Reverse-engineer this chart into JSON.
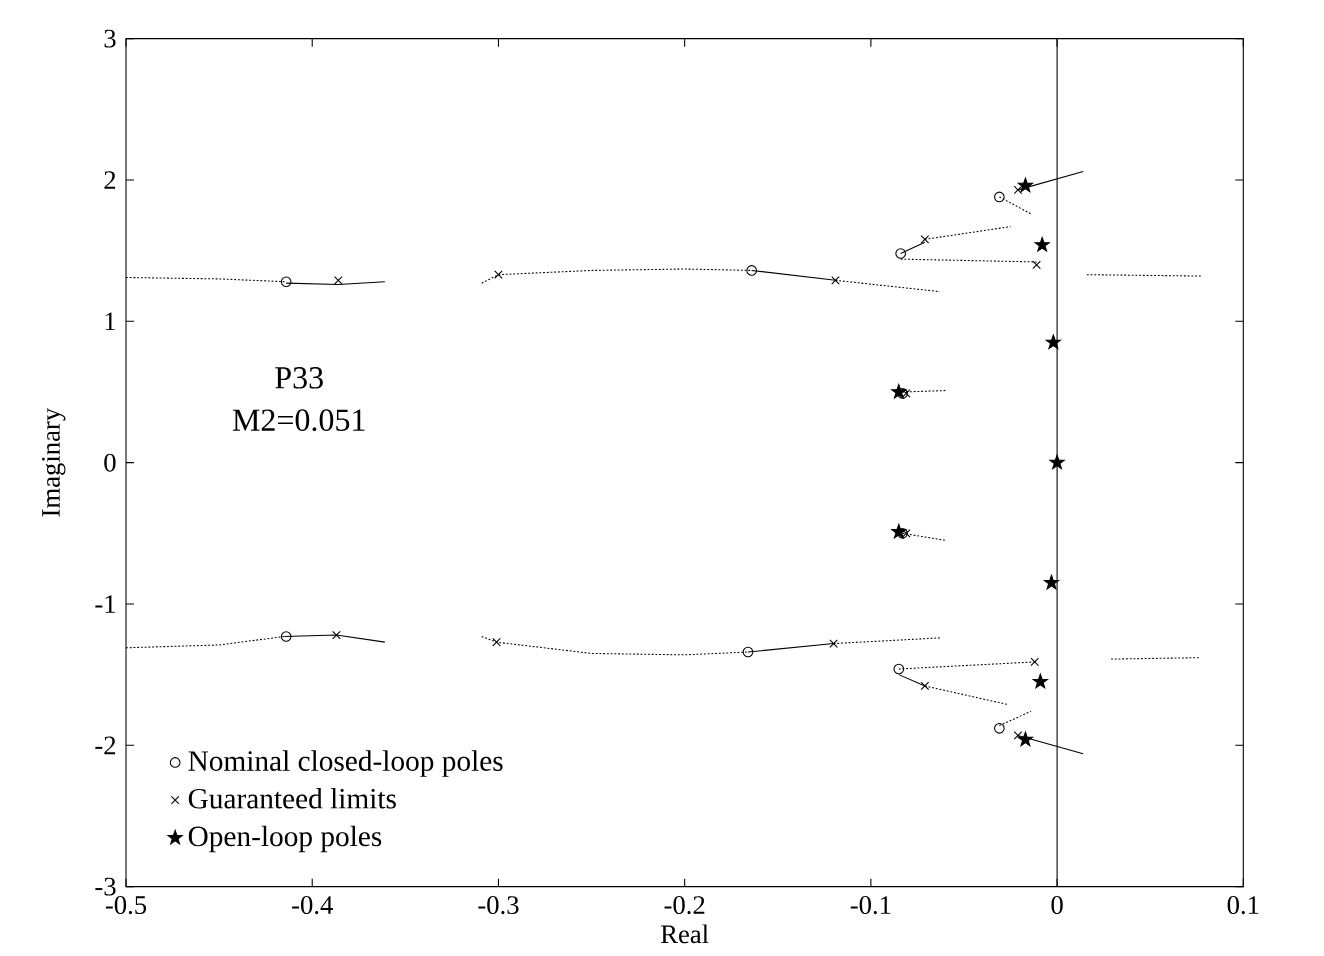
{
  "chart_data": {
    "type": "scatter",
    "xlabel": "Real",
    "ylabel": "Imaginary",
    "xlim": [
      -0.5,
      0.1
    ],
    "ylim": [
      -3,
      3
    ],
    "xticks": [
      -0.5,
      -0.4,
      -0.3,
      -0.2,
      -0.1,
      0,
      0.1
    ],
    "yticks": [
      -3,
      -2,
      -1,
      0,
      1,
      2,
      3
    ],
    "grid": false,
    "legend": "bottom left",
    "annotations": [
      "P33",
      "M2=0.051"
    ],
    "ref_lines": [
      {
        "axis": "x",
        "value": 0,
        "color": "#000000",
        "line_style": "solid"
      }
    ],
    "series": [
      {
        "name": "Nominal closed-loop poles",
        "marker": "circle",
        "color": "#000000",
        "x": [
          -0.414,
          -0.414,
          -0.164,
          -0.166,
          -0.084,
          -0.085,
          -0.083,
          -0.083,
          -0.031,
          -0.031
        ],
        "values": [
          1.28,
          -1.23,
          1.36,
          -1.34,
          1.48,
          -1.46,
          0.49,
          -0.5,
          1.88,
          -1.88
        ]
      },
      {
        "name": "Guaranteed limits",
        "marker": "cross",
        "color": "#000000",
        "x": [
          -0.386,
          -0.387,
          -0.3,
          -0.301,
          -0.119,
          -0.12,
          -0.071,
          -0.071,
          -0.011,
          -0.012,
          -0.081,
          -0.081,
          -0.021,
          -0.021
        ],
        "values": [
          1.29,
          -1.22,
          1.33,
          -1.27,
          1.29,
          -1.28,
          1.58,
          -1.58,
          1.4,
          -1.41,
          0.49,
          -0.5,
          1.93,
          -1.93
        ]
      },
      {
        "name": "Open-loop poles",
        "marker": "star",
        "color": "#000000",
        "x": [
          -0.008,
          -0.009,
          -0.002,
          0,
          -0.003,
          -0.085,
          -0.085,
          -0.017,
          -0.017
        ],
        "values": [
          1.54,
          -1.55,
          0.85,
          0,
          -0.85,
          0.5,
          -0.49,
          1.96,
          -1.96
        ]
      },
      {
        "type": "line",
        "line_style": "dotted",
        "color": "#000000",
        "x": [
          -0.5,
          -0.45,
          -0.414
        ],
        "values": [
          1.31,
          1.3,
          1.28
        ]
      },
      {
        "type": "line",
        "line_style": "solid",
        "color": "#000000",
        "x": [
          -0.414,
          -0.386,
          -0.361
        ],
        "values": [
          1.27,
          1.26,
          1.28
        ]
      },
      {
        "type": "line",
        "line_style": "dotted",
        "color": "#000000",
        "x": [
          -0.309,
          -0.3,
          -0.25,
          -0.2,
          -0.164
        ],
        "values": [
          1.27,
          1.33,
          1.36,
          1.37,
          1.36
        ]
      },
      {
        "type": "line",
        "line_style": "solid",
        "color": "#000000",
        "x": [
          -0.164,
          -0.119
        ],
        "values": [
          1.36,
          1.29
        ]
      },
      {
        "type": "line",
        "line_style": "dotted",
        "color": "#000000",
        "x": [
          -0.119,
          -0.063
        ],
        "values": [
          1.29,
          1.21
        ]
      },
      {
        "type": "line",
        "line_style": "dotted",
        "color": "#000000",
        "x": [
          -0.084,
          -0.011
        ],
        "values": [
          1.44,
          1.42
        ]
      },
      {
        "type": "line",
        "line_style": "solid",
        "color": "#000000",
        "x": [
          -0.084,
          -0.071
        ],
        "values": [
          1.48,
          1.56
        ]
      },
      {
        "type": "line",
        "line_style": "dotted",
        "color": "#000000",
        "x": [
          -0.071,
          -0.025
        ],
        "values": [
          1.58,
          1.67
        ]
      },
      {
        "type": "line",
        "line_style": "dotted",
        "color": "#000000",
        "x": [
          0.016,
          0.078
        ],
        "values": [
          1.33,
          1.32
        ]
      },
      {
        "type": "line",
        "line_style": "dotted",
        "color": "#000000",
        "x": [
          -0.083,
          -0.06
        ],
        "values": [
          0.5,
          0.51
        ]
      },
      {
        "type": "line",
        "line_style": "dotted",
        "color": "#000000",
        "x": [
          -0.031,
          -0.014
        ],
        "values": [
          1.88,
          1.76
        ]
      },
      {
        "type": "line",
        "line_style": "solid",
        "color": "#000000",
        "x": [
          -0.021,
          0.014
        ],
        "values": [
          1.93,
          2.06
        ]
      },
      {
        "type": "line",
        "line_style": "dotted",
        "color": "#000000",
        "x": [
          -0.5,
          -0.45,
          -0.415
        ],
        "values": [
          -1.31,
          -1.29,
          -1.23
        ]
      },
      {
        "type": "line",
        "line_style": "solid",
        "color": "#000000",
        "x": [
          -0.415,
          -0.387,
          -0.361
        ],
        "values": [
          -1.23,
          -1.22,
          -1.27
        ]
      },
      {
        "type": "line",
        "line_style": "dotted",
        "color": "#000000",
        "x": [
          -0.309,
          -0.301,
          -0.25,
          -0.2,
          -0.166
        ],
        "values": [
          -1.23,
          -1.27,
          -1.35,
          -1.36,
          -1.34
        ]
      },
      {
        "type": "line",
        "line_style": "solid",
        "color": "#000000",
        "x": [
          -0.166,
          -0.12
        ],
        "values": [
          -1.34,
          -1.28
        ]
      },
      {
        "type": "line",
        "line_style": "dotted",
        "color": "#000000",
        "x": [
          -0.12,
          -0.063
        ],
        "values": [
          -1.28,
          -1.24
        ]
      },
      {
        "type": "line",
        "line_style": "dotted",
        "color": "#000000",
        "x": [
          -0.085,
          -0.012
        ],
        "values": [
          -1.46,
          -1.41
        ]
      },
      {
        "type": "line",
        "line_style": "solid",
        "color": "#000000",
        "x": [
          -0.085,
          -0.071
        ],
        "values": [
          -1.5,
          -1.58
        ]
      },
      {
        "type": "line",
        "line_style": "dotted",
        "color": "#000000",
        "x": [
          -0.071,
          -0.027
        ],
        "values": [
          -1.58,
          -1.71
        ]
      },
      {
        "type": "line",
        "line_style": "dotted",
        "color": "#000000",
        "x": [
          0.029,
          0.076
        ],
        "values": [
          -1.39,
          -1.38
        ]
      },
      {
        "type": "line",
        "line_style": "dotted",
        "color": "#000000",
        "x": [
          -0.083,
          -0.06
        ],
        "values": [
          -0.5,
          -0.55
        ]
      },
      {
        "type": "line",
        "line_style": "dotted",
        "color": "#000000",
        "x": [
          -0.031,
          -0.014
        ],
        "values": [
          -1.86,
          -1.76
        ]
      },
      {
        "type": "line",
        "line_style": "solid",
        "color": "#000000",
        "x": [
          -0.021,
          0.014
        ],
        "values": [
          -1.93,
          -2.06
        ]
      }
    ]
  }
}
